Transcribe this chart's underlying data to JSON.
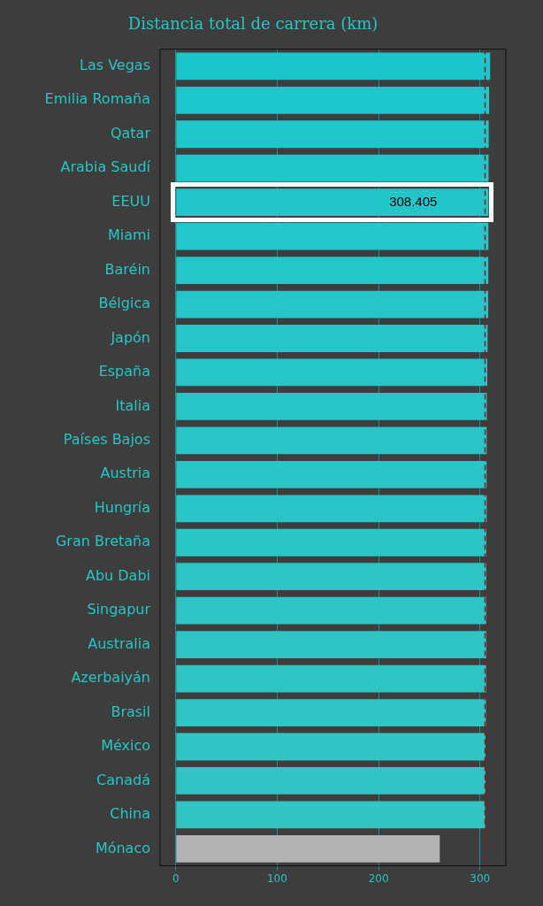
{
  "chart_data": {
    "type": "bar",
    "orientation": "horizontal",
    "title": "Distancia total de carrera (km)",
    "categories": [
      "Las Vegas",
      "Emilia Romaña",
      "Qatar",
      "Arabia Saudí",
      "EEUU",
      "Miami",
      "Baréin",
      "Bélgica",
      "Japón",
      "España",
      "Italia",
      "Países Bajos",
      "Austria",
      "Hungría",
      "Gran Bretaña",
      "Abu Dabi",
      "Singapur",
      "Australia",
      "Azerbaiyán",
      "Brasil",
      "México",
      "Canadá",
      "China",
      "Mónaco"
    ],
    "values": [
      310.0,
      309.0,
      308.6,
      308.5,
      308.405,
      308.3,
      308.2,
      308.1,
      307.5,
      307.2,
      306.7,
      306.6,
      306.5,
      306.6,
      306.2,
      306.2,
      306.1,
      306.1,
      306.0,
      305.9,
      305.4,
      305.3,
      305.1,
      260.3
    ],
    "colors": [
      "#1ac6ca",
      "#1cc6ca",
      "#1fc6ca",
      "#21c6c9",
      "#22c6c9",
      "#23c6c9",
      "#24c6c8",
      "#25c5c8",
      "#26c5c8",
      "#27c5c8",
      "#28c5c7",
      "#29c5c7",
      "#2ac5c7",
      "#2bc5c7",
      "#2cc5c6",
      "#2dc5c6",
      "#2ec5c6",
      "#2fc5c6",
      "#30c5c5",
      "#31c5c5",
      "#32c5c5",
      "#33c5c5",
      "#33c4c4",
      "#b3b3b3"
    ],
    "value_labels": [
      null,
      null,
      null,
      null,
      "308.405",
      null,
      null,
      null,
      null,
      null,
      null,
      null,
      null,
      null,
      null,
      null,
      null,
      null,
      null,
      null,
      null,
      null,
      null,
      null
    ],
    "xlim": [
      -15.5,
      325.5
    ],
    "xticks": [
      0,
      100,
      200,
      300
    ],
    "grid": "x",
    "legend": false,
    "ref_lines": [
      {
        "axis": "x",
        "value": 305,
        "color": "#8b1a1a",
        "line_style": "dashed"
      }
    ]
  }
}
